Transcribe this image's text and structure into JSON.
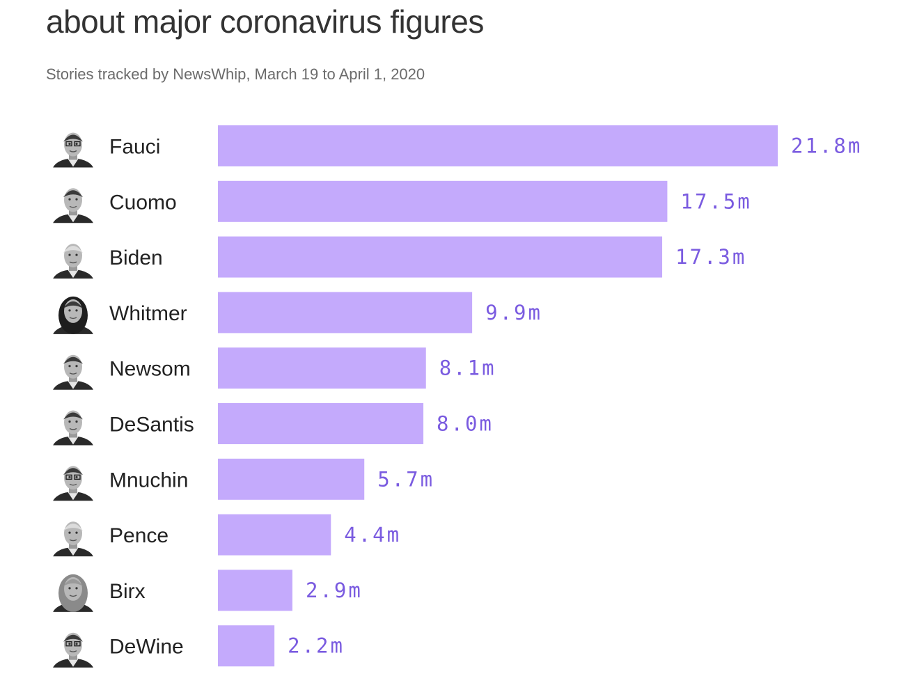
{
  "title": "about major coronavirus figures",
  "subtitle": "Stories tracked by NewsWhip, March 19 to April 1, 2020",
  "colors": {
    "bar": "#c4aafc",
    "value_text": "#7a5be0",
    "name_text": "#222222",
    "title_text": "#333333",
    "subtitle_text": "#6b6b6b"
  },
  "chart_data": {
    "type": "bar",
    "orientation": "horizontal",
    "categories": [
      "Fauci",
      "Cuomo",
      "Biden",
      "Whitmer",
      "Newsom",
      "DeSantis",
      "Mnuchin",
      "Pence",
      "Birx",
      "DeWine"
    ],
    "values": [
      21.8,
      17.5,
      17.3,
      9.9,
      8.1,
      8.0,
      5.7,
      4.4,
      2.9,
      2.2
    ],
    "value_labels": [
      "21.8m",
      "17.5m",
      "17.3m",
      "9.9m",
      "8.1m",
      "8.0m",
      "5.7m",
      "4.4m",
      "2.9m",
      "2.2m"
    ],
    "portrait_icons": [
      "fauci-portrait-icon",
      "cuomo-portrait-icon",
      "biden-portrait-icon",
      "whitmer-portrait-icon",
      "newsom-portrait-icon",
      "desantis-portrait-icon",
      "mnuchin-portrait-icon",
      "pence-portrait-icon",
      "birx-portrait-icon",
      "dewine-portrait-icon"
    ],
    "title": "about major coronavirus figures",
    "subtitle": "Stories tracked by NewsWhip, March 19 to April 1, 2020",
    "xlabel": "",
    "ylabel": "",
    "xlim": [
      0,
      21.8
    ],
    "grid": false,
    "legend": "none"
  }
}
